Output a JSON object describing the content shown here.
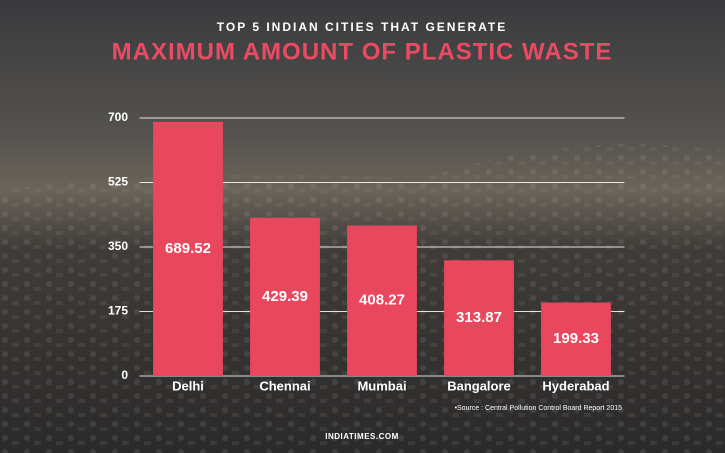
{
  "chart_data": {
    "type": "bar",
    "title": "TOP 5 INDIAN CITIES THAT GENERATE",
    "subtitle": "MAXIMUM AMOUNT OF PLASTIC WASTE",
    "categories": [
      "Delhi",
      "Chennai",
      "Mumbai",
      "Bangalore",
      "Hyderabad"
    ],
    "values": [
      689.52,
      429.39,
      408.27,
      313.87,
      199.33
    ],
    "color": "#e9475e",
    "ylim": [
      0,
      700
    ],
    "yticks": [
      0,
      175,
      350,
      525,
      700
    ],
    "grid": true,
    "annotations": [
      "•Source : Central  Pollution Control Board Report 2015",
      "INDIATIMES.COM"
    ]
  }
}
